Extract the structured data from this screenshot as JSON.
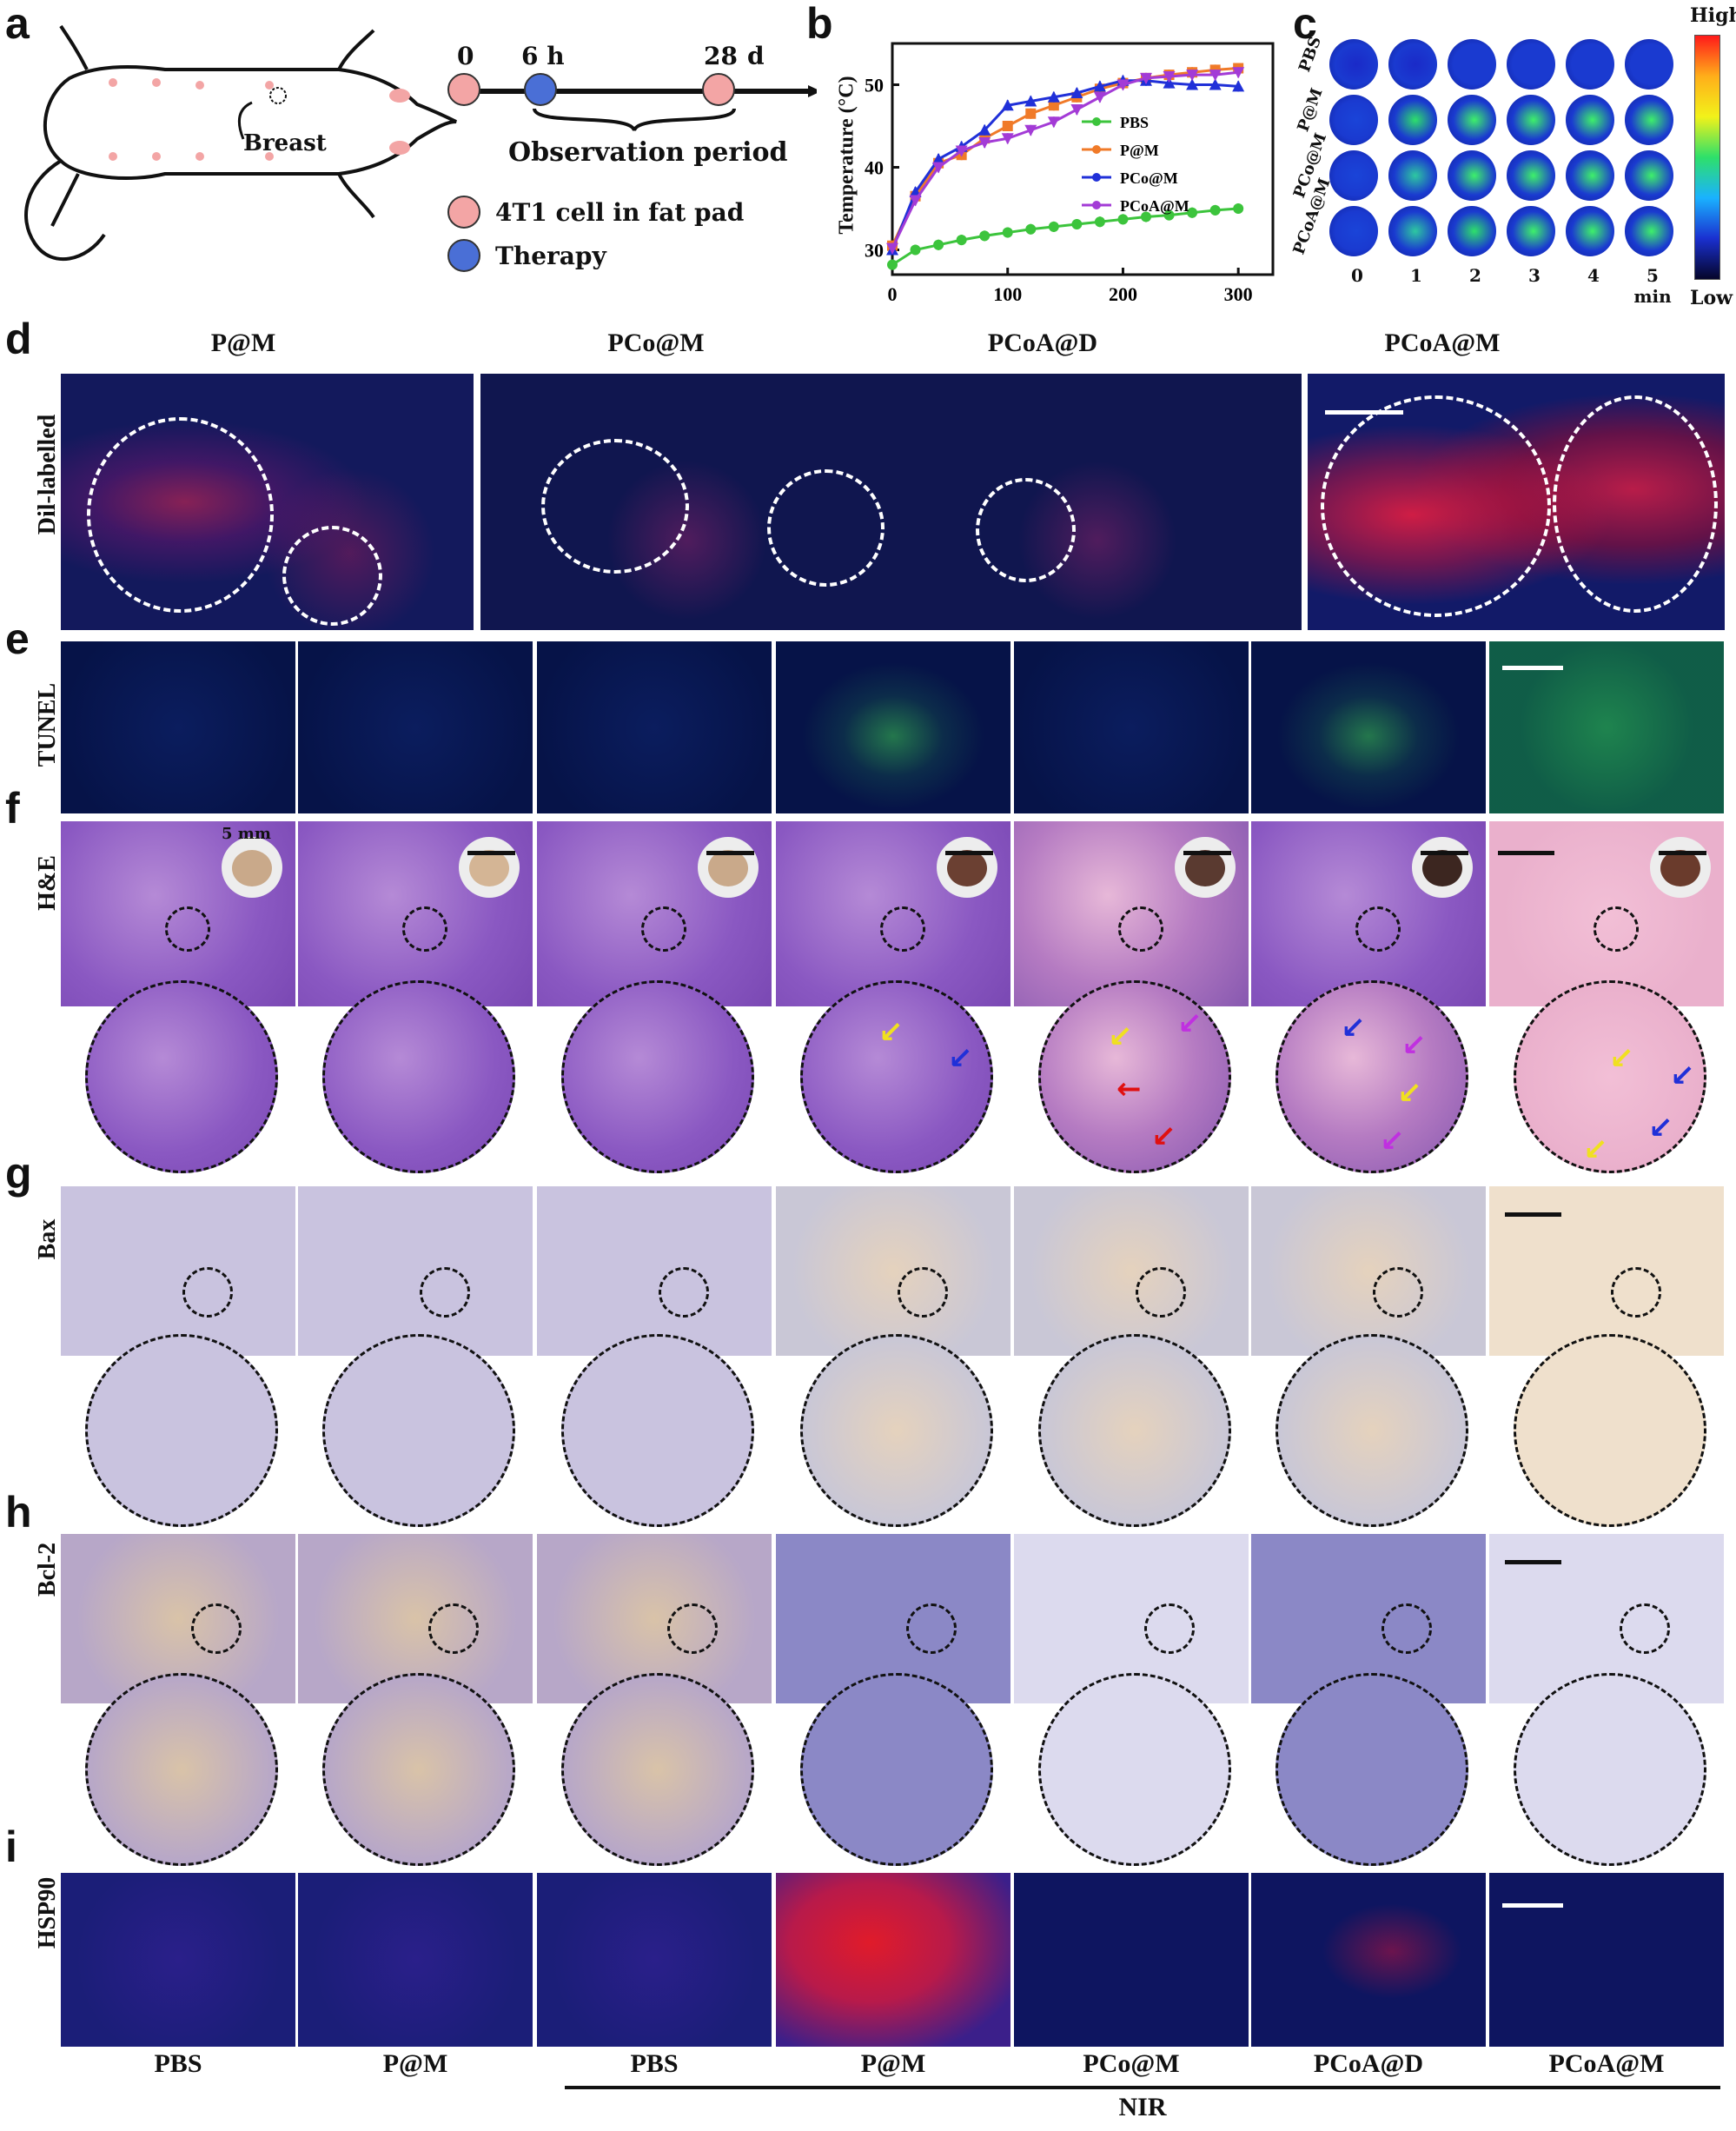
{
  "panel_labels": [
    "a",
    "b",
    "c",
    "d",
    "e",
    "f",
    "g",
    "h",
    "i"
  ],
  "panel_a": {
    "timeline_ticks": [
      "0",
      "6 h",
      "28"
    ],
    "timeline_unit": "d",
    "observation_label": "Observation period",
    "breast_label": "Breast",
    "legend": [
      {
        "label": "4T1 cell in fat pad",
        "color": "#f3a5a5"
      },
      {
        "label": "Therapy",
        "color": "#4a6fd6"
      }
    ]
  },
  "panel_c": {
    "rows": [
      "PBS",
      "P@M",
      "PCo@M",
      "PCoA@M"
    ],
    "cols": [
      "0",
      "1",
      "2",
      "3",
      "4",
      "5 min"
    ],
    "scale_high": "High",
    "scale_low": "Low"
  },
  "panel_d": {
    "row_label": "Dil-labelled",
    "headers": [
      "P@M",
      "PCo@M",
      "PCoA@D",
      "PCoA@M"
    ]
  },
  "row_labels": {
    "e": "TUNEL",
    "f": "H&E",
    "g": "Bax",
    "h": "Bcl-2",
    "i": "HSP90"
  },
  "scale_text": "5 mm",
  "bottom_groups": [
    "PBS",
    "P@M",
    "PBS",
    "P@M",
    "PCo@M",
    "PCoA@D",
    "PCoA@M"
  ],
  "nir_label": "NIR",
  "chart_data": {
    "type": "line",
    "xlabel": "",
    "ylabel": "Temperature (°C)",
    "xlim": [
      0,
      330
    ],
    "ylim": [
      27,
      55
    ],
    "xticks": [
      0,
      100,
      200,
      300
    ],
    "yticks": [
      30,
      40,
      50
    ],
    "x": [
      0,
      20,
      40,
      60,
      80,
      100,
      120,
      140,
      160,
      180,
      200,
      220,
      240,
      260,
      280,
      300
    ],
    "series": [
      {
        "name": "PBS",
        "color": "#3cc43c",
        "marker": "circle",
        "values": [
          28.2,
          30.0,
          30.6,
          31.2,
          31.7,
          32.1,
          32.5,
          32.8,
          33.1,
          33.4,
          33.7,
          34.0,
          34.2,
          34.5,
          34.8,
          35.0
        ]
      },
      {
        "name": "P@M",
        "color": "#f07a28",
        "marker": "square",
        "values": [
          30.5,
          36.5,
          40.5,
          41.5,
          43.5,
          45.0,
          46.5,
          47.5,
          48.5,
          49.5,
          50.2,
          50.8,
          51.2,
          51.5,
          51.8,
          52.0
        ]
      },
      {
        "name": "PCo@M",
        "color": "#2030d8",
        "marker": "triangle",
        "values": [
          30.0,
          37.0,
          41.0,
          42.5,
          44.5,
          47.5,
          48.0,
          48.5,
          49.0,
          49.8,
          50.5,
          50.5,
          50.2,
          50.0,
          50.0,
          49.8
        ]
      },
      {
        "name": "PCoA@M",
        "color": "#a33bd6",
        "marker": "triangle-down",
        "values": [
          30.2,
          36.0,
          40.0,
          42.0,
          43.0,
          43.5,
          44.5,
          45.5,
          47.0,
          48.5,
          50.0,
          50.8,
          51.0,
          51.2,
          51.2,
          51.5
        ]
      }
    ],
    "legend_position": "right"
  },
  "colors": {
    "pbs": "#3cc43c",
    "pm": "#f07a28",
    "pcom": "#2030d8",
    "pcoam": "#a33bd6"
  }
}
